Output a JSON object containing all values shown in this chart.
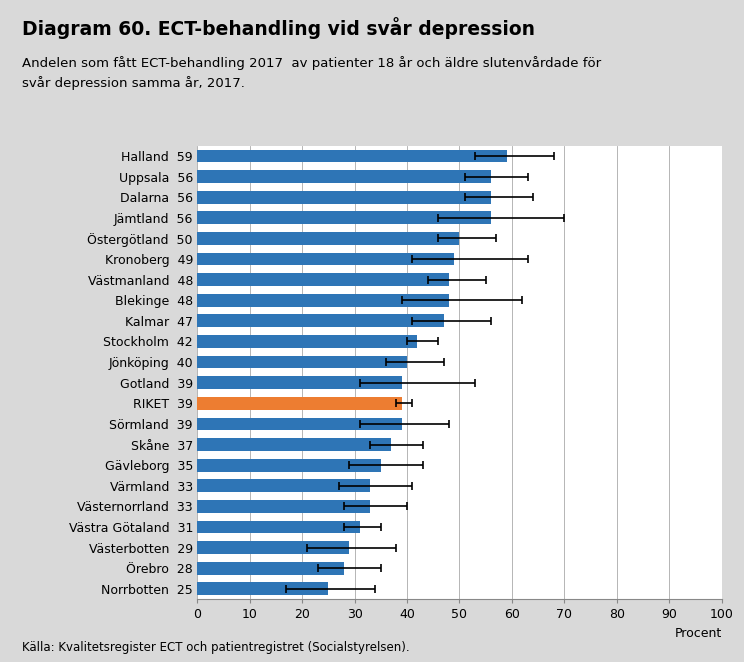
{
  "title": "Diagram 60. ECT-behandling vid svår depression",
  "subtitle": "Andelen som fått ECT-behandling 2017  av patienter 18 år och äldre slutenvårdade för\nsvår depression samma år, 2017.",
  "footer": "Källa: Kvalitetsregister ECT och patientregistret (Socialstyrelsen).",
  "xlabel": "Procent",
  "categories": [
    "Halland",
    "Uppsala",
    "Dalarna",
    "Jämtland",
    "Östergötland",
    "Kronoberg",
    "Västmanland",
    "Blekinge",
    "Kalmar",
    "Stockholm",
    "Jönköping",
    "Gotland",
    "RIKET",
    "Sörmland",
    "Skåne",
    "Gävleborg",
    "Värmland",
    "Västernorrland",
    "Västra Götaland",
    "Västerbotten",
    "Örebro",
    "Norrbotten"
  ],
  "values": [
    59,
    56,
    56,
    56,
    50,
    49,
    48,
    48,
    47,
    42,
    40,
    39,
    39,
    39,
    37,
    35,
    33,
    33,
    31,
    29,
    28,
    25
  ],
  "error_low": [
    6,
    5,
    5,
    10,
    4,
    8,
    4,
    9,
    6,
    2,
    4,
    8,
    1,
    8,
    4,
    6,
    6,
    5,
    3,
    8,
    5,
    8
  ],
  "error_high": [
    9,
    7,
    8,
    14,
    7,
    14,
    7,
    14,
    9,
    4,
    7,
    14,
    2,
    9,
    6,
    8,
    8,
    7,
    4,
    9,
    7,
    9
  ],
  "bar_colors": [
    "#2E75B6",
    "#2E75B6",
    "#2E75B6",
    "#2E75B6",
    "#2E75B6",
    "#2E75B6",
    "#2E75B6",
    "#2E75B6",
    "#2E75B6",
    "#2E75B6",
    "#2E75B6",
    "#2E75B6",
    "#ED7D31",
    "#2E75B6",
    "#2E75B6",
    "#2E75B6",
    "#2E75B6",
    "#2E75B6",
    "#2E75B6",
    "#2E75B6",
    "#2E75B6",
    "#2E75B6"
  ],
  "xlim": [
    0,
    100
  ],
  "xticks": [
    0,
    10,
    20,
    30,
    40,
    50,
    60,
    70,
    80,
    90,
    100
  ],
  "background_color": "#D9D9D9",
  "plot_background_color": "#FFFFFF",
  "title_fontsize": 13.5,
  "subtitle_fontsize": 9.5,
  "label_fontsize": 9,
  "tick_fontsize": 9,
  "footer_fontsize": 8.5
}
